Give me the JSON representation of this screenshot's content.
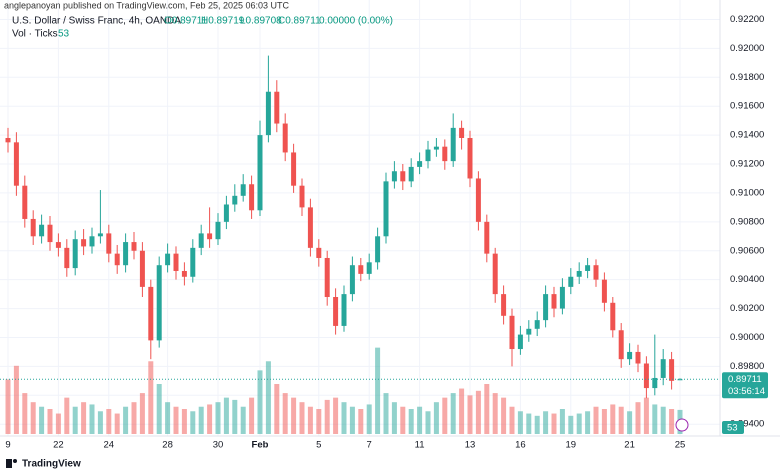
{
  "header": {
    "publisher": "anglepanoyan published on TradingView.com, Feb 25, 2025 06:03 UTC",
    "symbol": "U.S. Dollar / Swiss Franc, 4h, OANDA",
    "ohlc": [
      "O0.89711",
      "H0.89719",
      "L0.89708",
      "C0.89711",
      "0.00000 (0.00%)"
    ],
    "volume_label": "Vol · Ticks"
  },
  "footer": {
    "brand": "TradingView"
  },
  "chart_data": {
    "type": "candlestick",
    "up_color": "#26a69a",
    "down_color": "#ef5350",
    "grid": true,
    "categories": [
      "9",
      null,
      null,
      null,
      null,
      null,
      "22",
      null,
      null,
      null,
      null,
      null,
      "24",
      null,
      null,
      null,
      null,
      null,
      null,
      "28",
      null,
      null,
      null,
      null,
      null,
      "30",
      null,
      null,
      null,
      null,
      "Feb",
      null,
      null,
      null,
      null,
      null,
      null,
      "5",
      null,
      null,
      null,
      null,
      null,
      "7",
      null,
      null,
      null,
      null,
      null,
      "11",
      null,
      null,
      null,
      null,
      null,
      "13",
      null,
      null,
      null,
      null,
      null,
      "16",
      null,
      null,
      null,
      null,
      null,
      "19",
      null,
      null,
      null,
      null,
      null,
      null,
      "21",
      null,
      null,
      null,
      null,
      null,
      "25"
    ],
    "open": [
      0.9138,
      0.9135,
      0.9105,
      0.9082,
      0.907,
      0.9078,
      0.9066,
      0.9062,
      0.9048,
      0.9068,
      0.9063,
      0.907,
      0.9072,
      0.9058,
      0.905,
      0.9066,
      0.906,
      0.9035,
      0.8998,
      0.905,
      0.9058,
      0.9046,
      0.9042,
      0.9062,
      0.9072,
      0.9068,
      0.908,
      0.9092,
      0.9098,
      0.9106,
      0.9088,
      0.914,
      0.917,
      0.9148,
      0.9128,
      0.9105,
      0.909,
      0.9062,
      0.9055,
      0.9028,
      0.9008,
      0.903,
      0.905,
      0.9044,
      0.9052,
      0.907,
      0.9108,
      0.9115,
      0.9108,
      0.9118,
      0.9122,
      0.913,
      0.9132,
      0.9122,
      0.9145,
      0.9138,
      0.911,
      0.908,
      0.9058,
      0.903,
      0.9015,
      0.8992,
      0.9002,
      0.9006,
      0.9012,
      0.903,
      0.902,
      0.9035,
      0.9042,
      0.9046,
      0.905,
      0.904,
      0.9024,
      0.9005,
      0.8985,
      0.899,
      0.8982,
      0.8965,
      0.8972,
      0.8985,
      0.89711
    ],
    "high": [
      0.9145,
      0.9142,
      0.9112,
      0.9088,
      0.9085,
      0.9084,
      0.9072,
      0.9068,
      0.9074,
      0.9075,
      0.9076,
      0.9102,
      0.9078,
      0.9064,
      0.9072,
      0.9073,
      0.9066,
      0.904,
      0.9056,
      0.9065,
      0.9063,
      0.9052,
      0.9068,
      0.9078,
      0.909,
      0.9086,
      0.9098,
      0.9106,
      0.9113,
      0.9112,
      0.915,
      0.9195,
      0.9178,
      0.9155,
      0.9134,
      0.911,
      0.9096,
      0.9068,
      0.906,
      0.9034,
      0.9036,
      0.9056,
      0.9055,
      0.9058,
      0.9076,
      0.9114,
      0.9122,
      0.912,
      0.9124,
      0.9128,
      0.9136,
      0.9138,
      0.9137,
      0.9155,
      0.915,
      0.9143,
      0.9115,
      0.9085,
      0.9062,
      0.9036,
      0.902,
      0.9008,
      0.9012,
      0.9018,
      0.9036,
      0.9035,
      0.9041,
      0.9048,
      0.9052,
      0.9055,
      0.9054,
      0.9045,
      0.9028,
      0.901,
      0.8996,
      0.8995,
      0.8987,
      0.9002,
      0.8992,
      0.899,
      0.89719
    ],
    "low": [
      0.9128,
      0.9098,
      0.9076,
      0.9064,
      0.9065,
      0.906,
      0.9056,
      0.9042,
      0.9043,
      0.9057,
      0.9058,
      0.9065,
      0.9052,
      0.9044,
      0.9045,
      0.9054,
      0.9028,
      0.8985,
      0.8993,
      0.9045,
      0.904,
      0.9036,
      0.9038,
      0.9057,
      0.9062,
      0.9064,
      0.9075,
      0.9087,
      0.9094,
      0.9082,
      0.9084,
      0.9135,
      0.9142,
      0.9122,
      0.91,
      0.9084,
      0.9056,
      0.9049,
      0.9022,
      0.9002,
      0.9004,
      0.9025,
      0.9039,
      0.904,
      0.9047,
      0.9065,
      0.9103,
      0.9102,
      0.9104,
      0.9113,
      0.9117,
      0.9125,
      0.9116,
      0.9118,
      0.913,
      0.9104,
      0.9074,
      0.9052,
      0.9024,
      0.9009,
      0.898,
      0.8988,
      0.8997,
      0.9001,
      0.9007,
      0.9014,
      0.9016,
      0.903,
      0.9037,
      0.9041,
      0.9035,
      0.9018,
      0.9,
      0.8979,
      0.8981,
      0.8976,
      0.8958,
      0.896,
      0.8967,
      0.8964,
      0.89708
    ],
    "close": [
      0.9135,
      0.9105,
      0.9082,
      0.907,
      0.9078,
      0.9066,
      0.9062,
      0.9048,
      0.9068,
      0.9063,
      0.907,
      0.9072,
      0.9058,
      0.905,
      0.9066,
      0.906,
      0.9035,
      0.8998,
      0.905,
      0.9058,
      0.9046,
      0.9042,
      0.9062,
      0.9072,
      0.9068,
      0.908,
      0.9092,
      0.9098,
      0.9106,
      0.9088,
      0.914,
      0.917,
      0.9148,
      0.9128,
      0.9105,
      0.909,
      0.9062,
      0.9055,
      0.9028,
      0.9008,
      0.903,
      0.905,
      0.9044,
      0.9052,
      0.907,
      0.9108,
      0.9115,
      0.9108,
      0.9118,
      0.9122,
      0.913,
      0.9132,
      0.9122,
      0.9145,
      0.9138,
      0.911,
      0.908,
      0.9058,
      0.903,
      0.9015,
      0.8992,
      0.9002,
      0.9006,
      0.9012,
      0.903,
      0.902,
      0.9035,
      0.9042,
      0.9046,
      0.905,
      0.904,
      0.9024,
      0.9005,
      0.8985,
      0.899,
      0.8982,
      0.8965,
      0.8972,
      0.8985,
      0.897,
      0.89711
    ],
    "volume": [
      120,
      150,
      90,
      70,
      60,
      55,
      45,
      80,
      60,
      70,
      65,
      50,
      55,
      45,
      60,
      70,
      90,
      160,
      110,
      70,
      60,
      55,
      50,
      60,
      65,
      70,
      80,
      75,
      60,
      80,
      140,
      160,
      110,
      90,
      80,
      70,
      60,
      55,
      75,
      80,
      70,
      60,
      55,
      65,
      190,
      90,
      70,
      60,
      55,
      60,
      50,
      70,
      80,
      90,
      100,
      85,
      95,
      110,
      90,
      80,
      60,
      50,
      45,
      40,
      50,
      45,
      55,
      40,
      45,
      50,
      60,
      55,
      65,
      60,
      50,
      70,
      80,
      65,
      60,
      55,
      53
    ],
    "volume_lim": [
      0,
      220
    ],
    "ylim": [
      0.8936,
      0.923
    ],
    "yticks": [
      {
        "value": 0.922,
        "label": "0.92200"
      },
      {
        "value": 0.92,
        "label": "0.92000"
      },
      {
        "value": 0.918,
        "label": "0.91800"
      },
      {
        "value": 0.916,
        "label": "0.91600"
      },
      {
        "value": 0.914,
        "label": "0.91400"
      },
      {
        "value": 0.912,
        "label": "0.91200"
      },
      {
        "value": 0.91,
        "label": "0.91000"
      },
      {
        "value": 0.908,
        "label": "0.90800"
      },
      {
        "value": 0.906,
        "label": "0.90600"
      },
      {
        "value": 0.904,
        "label": "0.90400"
      },
      {
        "value": 0.902,
        "label": "0.90200"
      },
      {
        "value": 0.9,
        "label": "0.90000"
      },
      {
        "value": 0.898,
        "label": "0.89800"
      },
      {
        "value": 0.896,
        "label": "0.89600"
      },
      {
        "value": 0.894,
        "label": "0.89400"
      }
    ],
    "last_price": {
      "value": 0.89711,
      "label": "0.89711"
    },
    "countdown": "03:56:14",
    "last_volume": 53
  }
}
